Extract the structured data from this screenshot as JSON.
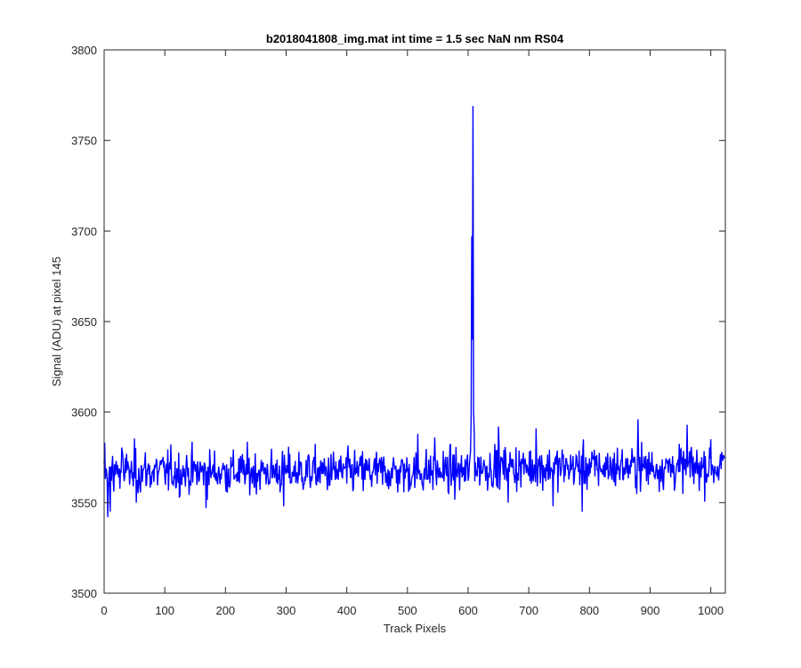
{
  "chart_data": {
    "type": "line",
    "title": "b2018041808_img.mat int time = 1.5 sec  NaN nm RS04",
    "xlabel": "Track Pixels",
    "ylabel": "Signal (ADU) at pixel 145",
    "xlim": [
      0,
      1024
    ],
    "ylim": [
      3500,
      3800
    ],
    "xticks": [
      0,
      100,
      200,
      300,
      400,
      500,
      600,
      700,
      800,
      900,
      1000
    ],
    "yticks": [
      3500,
      3550,
      3600,
      3650,
      3700,
      3750,
      3800
    ],
    "grid": false,
    "series_color": "#0000ff",
    "noise_baseline": 3567,
    "noise_range": [
      3545,
      3593
    ],
    "highlights": [
      {
        "x": 1,
        "y": 3583
      },
      {
        "x": 6,
        "y": 3542
      },
      {
        "x": 10,
        "y": 3545
      },
      {
        "x": 53,
        "y": 3550
      },
      {
        "x": 168,
        "y": 3547
      },
      {
        "x": 296,
        "y": 3548
      },
      {
        "x": 517,
        "y": 3588
      },
      {
        "x": 545,
        "y": 3586
      },
      {
        "x": 605,
        "y": 3598
      },
      {
        "x": 606,
        "y": 3697
      },
      {
        "x": 607,
        "y": 3640
      },
      {
        "x": 608,
        "y": 3769
      },
      {
        "x": 609,
        "y": 3600
      },
      {
        "x": 610,
        "y": 3590
      },
      {
        "x": 650,
        "y": 3592
      },
      {
        "x": 666,
        "y": 3550
      },
      {
        "x": 712,
        "y": 3591
      },
      {
        "x": 740,
        "y": 3548
      },
      {
        "x": 788,
        "y": 3545
      },
      {
        "x": 880,
        "y": 3596
      },
      {
        "x": 961,
        "y": 3593
      },
      {
        "x": 1000,
        "y": 3585
      },
      {
        "x": 1022,
        "y": 3575
      }
    ]
  }
}
